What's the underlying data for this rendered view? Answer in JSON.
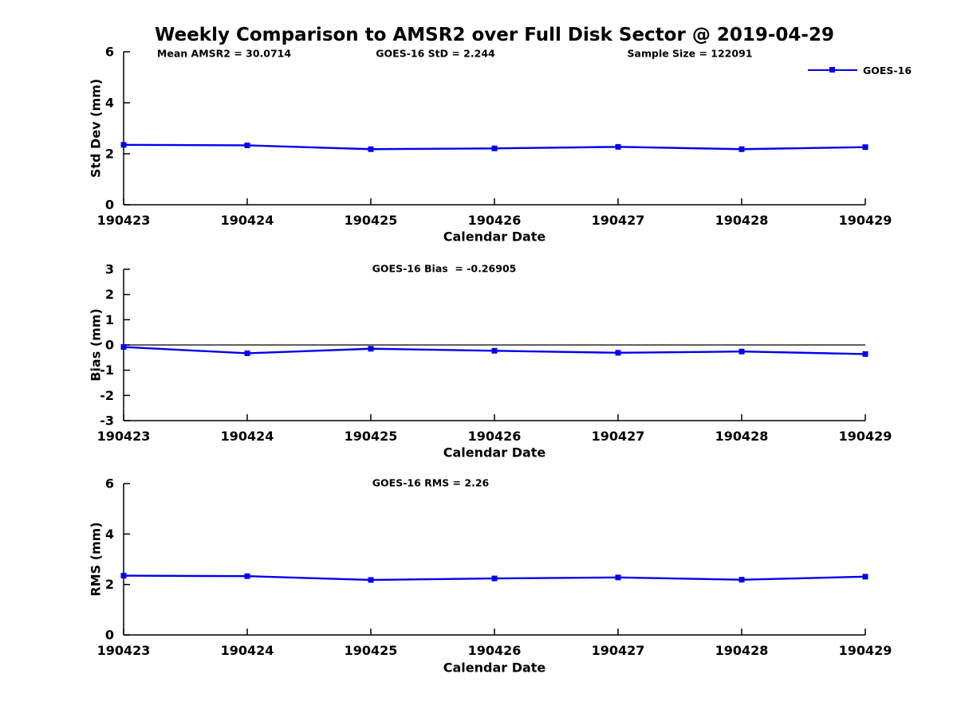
{
  "figure": {
    "title": "Weekly Comparison to AMSR2 over Full Disk Sector @ 2019-04-29",
    "colors": {
      "line": "#0000ee",
      "axis": "#000000",
      "text": "#000000",
      "background": "#ffffff"
    }
  },
  "chart_data": [
    {
      "type": "line",
      "id": "std-dev",
      "annotations": [
        "Mean AMSR2 = 30.0714",
        "GOES-16 StD = 2.244",
        "Sample Size = 122091"
      ],
      "legend": {
        "label": "GOES-16",
        "position": "top-right"
      },
      "xlabel": "Calendar Date",
      "ylabel": "Std Dev (mm)",
      "ylim": [
        0,
        6
      ],
      "yticks": [
        0,
        2,
        4,
        6
      ],
      "grid": false,
      "categories": [
        "190423",
        "190424",
        "190425",
        "190426",
        "190427",
        "190428",
        "190429"
      ],
      "series": [
        {
          "name": "GOES-16",
          "values": [
            2.35,
            2.33,
            2.18,
            2.21,
            2.27,
            2.18,
            2.26
          ]
        }
      ]
    },
    {
      "type": "line",
      "id": "bias",
      "annotations": [
        "GOES-16 Bias  = -0.26905"
      ],
      "xlabel": "Calendar Date",
      "ylabel": "Bias (mm)",
      "ylim": [
        -3,
        3
      ],
      "yticks": [
        -3,
        -2,
        -1,
        0,
        1,
        2,
        3
      ],
      "zero_line": true,
      "grid": false,
      "categories": [
        "190423",
        "190424",
        "190425",
        "190426",
        "190427",
        "190428",
        "190429"
      ],
      "series": [
        {
          "name": "GOES-16",
          "values": [
            -0.08,
            -0.33,
            -0.15,
            -0.23,
            -0.31,
            -0.26,
            -0.36
          ]
        }
      ]
    },
    {
      "type": "line",
      "id": "rms",
      "annotations": [
        "GOES-16 RMS = 2.26"
      ],
      "xlabel": "Calendar Date",
      "ylabel": "RMS (mm)",
      "ylim": [
        0,
        6
      ],
      "yticks": [
        0,
        2,
        4,
        6
      ],
      "grid": false,
      "categories": [
        "190423",
        "190424",
        "190425",
        "190426",
        "190427",
        "190428",
        "190429"
      ],
      "series": [
        {
          "name": "GOES-16",
          "values": [
            2.35,
            2.33,
            2.18,
            2.24,
            2.28,
            2.19,
            2.31
          ]
        }
      ]
    }
  ]
}
